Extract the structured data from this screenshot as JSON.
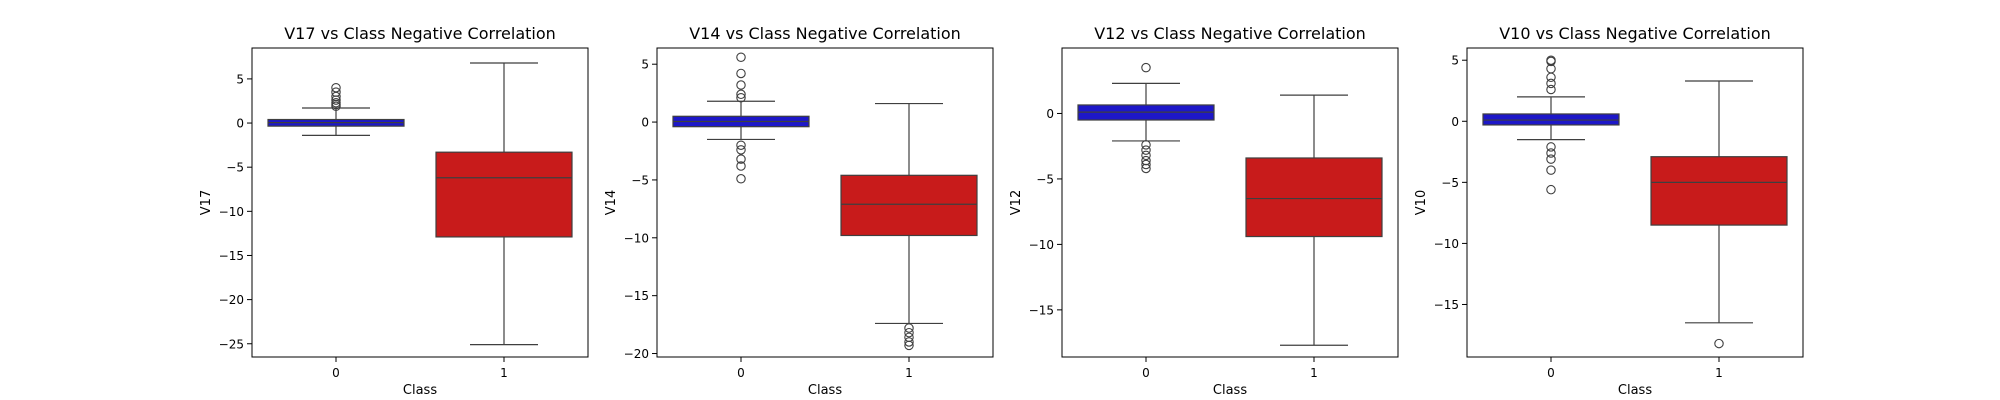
{
  "chart_data": [
    {
      "type": "box",
      "title": "V17 vs Class Negative Correlation",
      "xlabel": "Class",
      "ylabel": "V17",
      "categories": [
        "0",
        "1"
      ],
      "ylim": [
        -26.5,
        8.5
      ],
      "yticks": [
        5,
        0,
        -5,
        -10,
        -15,
        -20,
        -25
      ],
      "ytick_labels": [
        "5",
        "0",
        "−5",
        "−10",
        "−15",
        "−20",
        "−25"
      ],
      "boxes": [
        {
          "category": "0",
          "color": "#1d17c8",
          "whisker_low": -1.4,
          "q1": -0.35,
          "median": 0.05,
          "q3": 0.4,
          "whisker_high": 1.7,
          "outliers": [
            1.9,
            2.1,
            2.3,
            2.6,
            3.0,
            3.5,
            4.0
          ]
        },
        {
          "category": "1",
          "color": "#c81b1b",
          "whisker_low": -25.1,
          "q1": -12.9,
          "median": -6.2,
          "q3": -3.3,
          "whisker_high": 6.8,
          "outliers": []
        }
      ]
    },
    {
      "type": "box",
      "title": "V14 vs Class Negative Correlation",
      "xlabel": "Class",
      "ylabel": "V14",
      "categories": [
        "0",
        "1"
      ],
      "ylim": [
        -20.3,
        6.4
      ],
      "yticks": [
        5,
        0,
        -5,
        -10,
        -15,
        -20
      ],
      "ytick_labels": [
        "5",
        "0",
        "−5",
        "−10",
        "−15",
        "−20"
      ],
      "boxes": [
        {
          "category": "0",
          "color": "#1d17c8",
          "whisker_low": -1.5,
          "q1": -0.4,
          "median": 0.05,
          "q3": 0.5,
          "whisker_high": 1.8,
          "outliers": [
            2.1,
            2.4,
            3.2,
            4.2,
            5.6,
            -2.0,
            -2.4,
            -3.2,
            -3.8,
            -4.9
          ]
        },
        {
          "category": "1",
          "color": "#c81b1b",
          "whisker_low": -17.4,
          "q1": -9.8,
          "median": -7.1,
          "q3": -4.6,
          "whisker_high": 1.6,
          "outliers": [
            -17.8,
            -18.2,
            -18.6,
            -19.0,
            -19.3
          ]
        }
      ]
    },
    {
      "type": "box",
      "title": "V12 vs Class Negative Correlation",
      "xlabel": "Class",
      "ylabel": "V12",
      "categories": [
        "0",
        "1"
      ],
      "ylim": [
        -18.6,
        5.0
      ],
      "yticks": [
        0,
        -5,
        -10,
        -15
      ],
      "ytick_labels": [
        "0",
        "−5",
        "−10",
        "−15"
      ],
      "boxes": [
        {
          "category": "0",
          "color": "#1d17c8",
          "whisker_low": -2.1,
          "q1": -0.5,
          "median": 0.1,
          "q3": 0.65,
          "whisker_high": 2.3,
          "outliers": [
            3.5,
            -2.4,
            -2.8,
            -3.2,
            -3.6,
            -3.9,
            -4.2
          ]
        },
        {
          "category": "1",
          "color": "#c81b1b",
          "whisker_low": -17.7,
          "q1": -9.4,
          "median": -6.5,
          "q3": -3.4,
          "whisker_high": 1.4,
          "outliers": []
        }
      ]
    },
    {
      "type": "box",
      "title": "V10 vs Class Negative Correlation",
      "xlabel": "Class",
      "ylabel": "V10",
      "categories": [
        "0",
        "1"
      ],
      "ylim": [
        -19.3,
        6.0
      ],
      "yticks": [
        5,
        0,
        -5,
        -10,
        -15
      ],
      "ytick_labels": [
        "5",
        "0",
        "−5",
        "−10",
        "−15"
      ],
      "boxes": [
        {
          "category": "0",
          "color": "#1d17c8",
          "whisker_low": -1.5,
          "q1": -0.3,
          "median": 0.1,
          "q3": 0.6,
          "whisker_high": 2.0,
          "outliers": [
            2.6,
            3.1,
            3.6,
            4.3,
            4.9,
            5.0,
            -2.1,
            -2.6,
            -3.1,
            -4.0,
            -5.6
          ]
        },
        {
          "category": "1",
          "color": "#c81b1b",
          "whisker_low": -16.5,
          "q1": -8.5,
          "median": -5.0,
          "q3": -2.9,
          "whisker_high": 3.3,
          "outliers": [
            -18.2
          ]
        }
      ]
    }
  ]
}
